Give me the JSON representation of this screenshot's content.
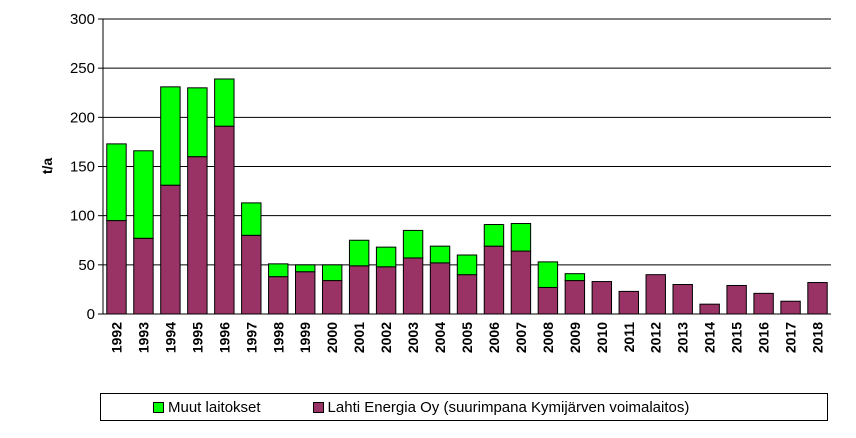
{
  "chart_data": {
    "type": "bar",
    "stacked": true,
    "ylabel": "t/a",
    "xlabel": "",
    "ylim": [
      0,
      300
    ],
    "yticks": [
      0,
      50,
      100,
      150,
      200,
      250,
      300
    ],
    "grid": true,
    "legend_position": "bottom",
    "categories": [
      "1992",
      "1993",
      "1994",
      "1995",
      "1996",
      "1997",
      "1998",
      "1999",
      "2000",
      "2001",
      "2002",
      "2003",
      "2004",
      "2005",
      "2006",
      "2007",
      "2008",
      "2009",
      "2010",
      "2011",
      "2012",
      "2013",
      "2014",
      "2015",
      "2016",
      "2017",
      "2018"
    ],
    "series": [
      {
        "name": "Lahti Energia Oy (suurimpana Kymijärven voimalaitos)",
        "color": "#993366",
        "values": [
          95,
          77,
          131,
          160,
          191,
          80,
          38,
          43,
          34,
          49,
          48,
          57,
          52,
          40,
          69,
          64,
          27,
          34,
          33,
          23,
          40,
          30,
          10,
          29,
          21,
          13,
          32
        ]
      },
      {
        "name": "Muut laitokset",
        "color": "#00ff00",
        "values": [
          78,
          89,
          100,
          70,
          48,
          33,
          13,
          7,
          16,
          26,
          20,
          28,
          17,
          20,
          22,
          28,
          26,
          7,
          0,
          0,
          0,
          0,
          0,
          0,
          0,
          0,
          0
        ]
      }
    ]
  },
  "legend": {
    "items": [
      {
        "label": "Muut laitokset",
        "color": "#00ff00"
      },
      {
        "label": "Lahti Energia Oy (suurimpana Kymijärven voimalaitos)",
        "color": "#993366"
      }
    ]
  }
}
